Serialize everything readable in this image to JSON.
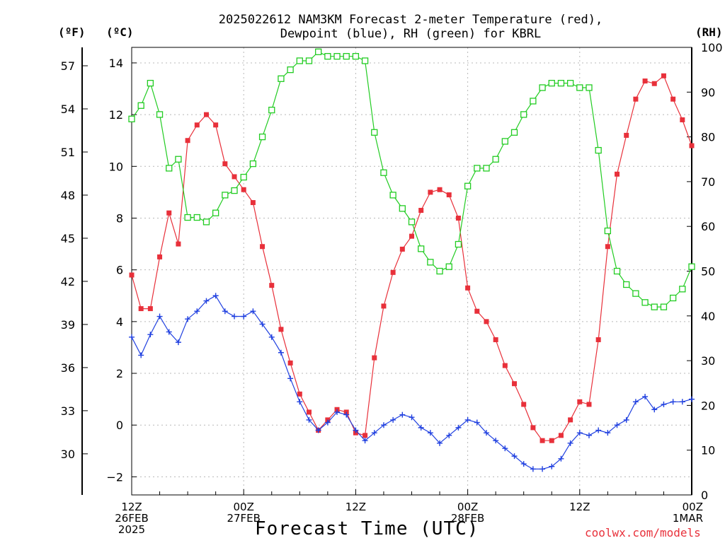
{
  "chart_data": {
    "type": "line",
    "title_line1": "2025022612 NAM3KM Forecast 2-meter Temperature (red),",
    "title_line2": "Dewpoint (blue), RH (green) for KBRL",
    "xlabel": "Forecast Time (UTC)",
    "units": {
      "fahrenheit": "(ºF)",
      "celsius": "(ºC)",
      "rh": "(RH)"
    },
    "credit": "coolwx.com/models",
    "x_axis": {
      "unit": "hours since first tick",
      "range": [
        0,
        72
      ],
      "ticks": [
        {
          "hour": 0,
          "lines": [
            "12Z",
            "26FEB",
            "2025"
          ]
        },
        {
          "hour": 12,
          "lines": [
            "00Z",
            "27FEB"
          ]
        },
        {
          "hour": 24,
          "lines": [
            "12Z"
          ]
        },
        {
          "hour": 36,
          "lines": [
            "00Z",
            "28FEB"
          ]
        },
        {
          "hour": 48,
          "lines": [
            "12Z"
          ]
        },
        {
          "hour": 60,
          "lines": [
            "00Z",
            "1MAR"
          ]
        }
      ]
    },
    "y_celsius": {
      "range": [
        -2.7,
        14.6
      ],
      "ticks": [
        -2,
        0,
        2,
        4,
        6,
        8,
        10,
        12,
        14
      ]
    },
    "y_fahrenheit": {
      "ticks": [
        30,
        33,
        36,
        39,
        42,
        45,
        48,
        51,
        54,
        57
      ]
    },
    "y_rh": {
      "range": [
        0,
        100
      ],
      "ticks": [
        0,
        10,
        20,
        30,
        40,
        50,
        60,
        70,
        80,
        90,
        100
      ]
    },
    "grid": true,
    "series": [
      {
        "name": "Temperature",
        "axis": "celsius",
        "color": "#e8303a",
        "marker": "filled-square",
        "x": [
          0,
          1,
          2,
          3,
          4,
          5,
          6,
          7,
          8,
          9,
          10,
          11,
          12,
          13,
          14,
          15,
          16,
          17,
          18,
          19,
          20,
          21,
          22,
          23,
          24,
          25,
          26,
          27,
          28,
          29,
          30,
          31,
          32,
          33,
          34,
          35,
          36,
          37,
          38,
          39,
          40,
          41,
          42,
          43,
          44,
          45,
          46,
          47,
          48,
          49,
          50,
          51,
          52,
          53,
          54,
          55,
          56,
          57,
          58,
          59,
          60
        ],
        "values": [
          5.8,
          4.5,
          4.5,
          6.5,
          8.2,
          7.0,
          11.0,
          11.6,
          12.0,
          11.6,
          10.1,
          9.6,
          9.1,
          8.6,
          6.9,
          5.4,
          3.7,
          2.4,
          1.2,
          0.5,
          -0.2,
          0.2,
          0.6,
          0.5,
          -0.3,
          -0.4,
          2.6,
          4.6,
          5.9,
          6.8,
          7.3,
          8.3,
          9.0,
          9.1,
          8.9,
          8.0,
          5.3,
          4.4,
          4.0,
          3.3,
          2.3,
          1.6,
          0.8,
          -0.1,
          -0.6,
          -0.6,
          -0.4,
          0.2,
          0.9,
          0.8,
          3.3,
          6.9,
          9.7,
          11.2,
          12.6,
          13.3,
          13.2,
          13.5,
          12.6,
          11.8,
          10.8
        ]
      },
      {
        "name": "Dewpoint",
        "axis": "celsius",
        "color": "#2040e0",
        "marker": "plus",
        "x": [
          0,
          1,
          2,
          3,
          4,
          5,
          6,
          7,
          8,
          9,
          10,
          11,
          12,
          13,
          14,
          15,
          16,
          17,
          18,
          19,
          20,
          21,
          22,
          23,
          24,
          25,
          26,
          27,
          28,
          29,
          30,
          31,
          32,
          33,
          34,
          35,
          36,
          37,
          38,
          39,
          40,
          41,
          42,
          43,
          44,
          45,
          46,
          47,
          48,
          49,
          50,
          51,
          52,
          53,
          54,
          55,
          56,
          57,
          58,
          59,
          60
        ],
        "values": [
          3.4,
          2.7,
          3.5,
          4.2,
          3.6,
          3.2,
          4.1,
          4.4,
          4.8,
          5.0,
          4.4,
          4.2,
          4.2,
          4.4,
          3.9,
          3.4,
          2.8,
          1.8,
          0.9,
          0.2,
          -0.2,
          0.1,
          0.5,
          0.4,
          -0.2,
          -0.6,
          -0.3,
          0.0,
          0.2,
          0.4,
          0.3,
          -0.1,
          -0.3,
          -0.7,
          -0.4,
          -0.1,
          0.2,
          0.1,
          -0.3,
          -0.6,
          -0.9,
          -1.2,
          -1.5,
          -1.7,
          -1.7,
          -1.6,
          -1.3,
          -0.7,
          -0.3,
          -0.4,
          -0.2,
          -0.3,
          0.0,
          0.2,
          0.9,
          1.1,
          0.6,
          0.8,
          0.9,
          0.9,
          1.0
        ]
      },
      {
        "name": "RH",
        "axis": "rh",
        "color": "#22cc22",
        "marker": "open-square",
        "x": [
          0,
          1,
          2,
          3,
          4,
          5,
          6,
          7,
          8,
          9,
          10,
          11,
          12,
          13,
          14,
          15,
          16,
          17,
          18,
          19,
          20,
          21,
          22,
          23,
          24,
          25,
          26,
          27,
          28,
          29,
          30,
          31,
          32,
          33,
          34,
          35,
          36,
          37,
          38,
          39,
          40,
          41,
          42,
          43,
          44,
          45,
          46,
          47,
          48,
          49,
          50,
          51,
          52,
          53,
          54,
          55,
          56,
          57,
          58,
          59,
          60
        ],
        "values": [
          84,
          87,
          92,
          85,
          73,
          75,
          62,
          62,
          61,
          63,
          67,
          68,
          71,
          74,
          80,
          86,
          93,
          95,
          97,
          97,
          99,
          98,
          98,
          98,
          98,
          97,
          81,
          72,
          67,
          64,
          61,
          55,
          52,
          50,
          51,
          56,
          69,
          73,
          73,
          75,
          79,
          81,
          85,
          88,
          91,
          92,
          92,
          92,
          91,
          91,
          77,
          59,
          50,
          47,
          45,
          43,
          42,
          42,
          44,
          46,
          51
        ]
      }
    ]
  }
}
